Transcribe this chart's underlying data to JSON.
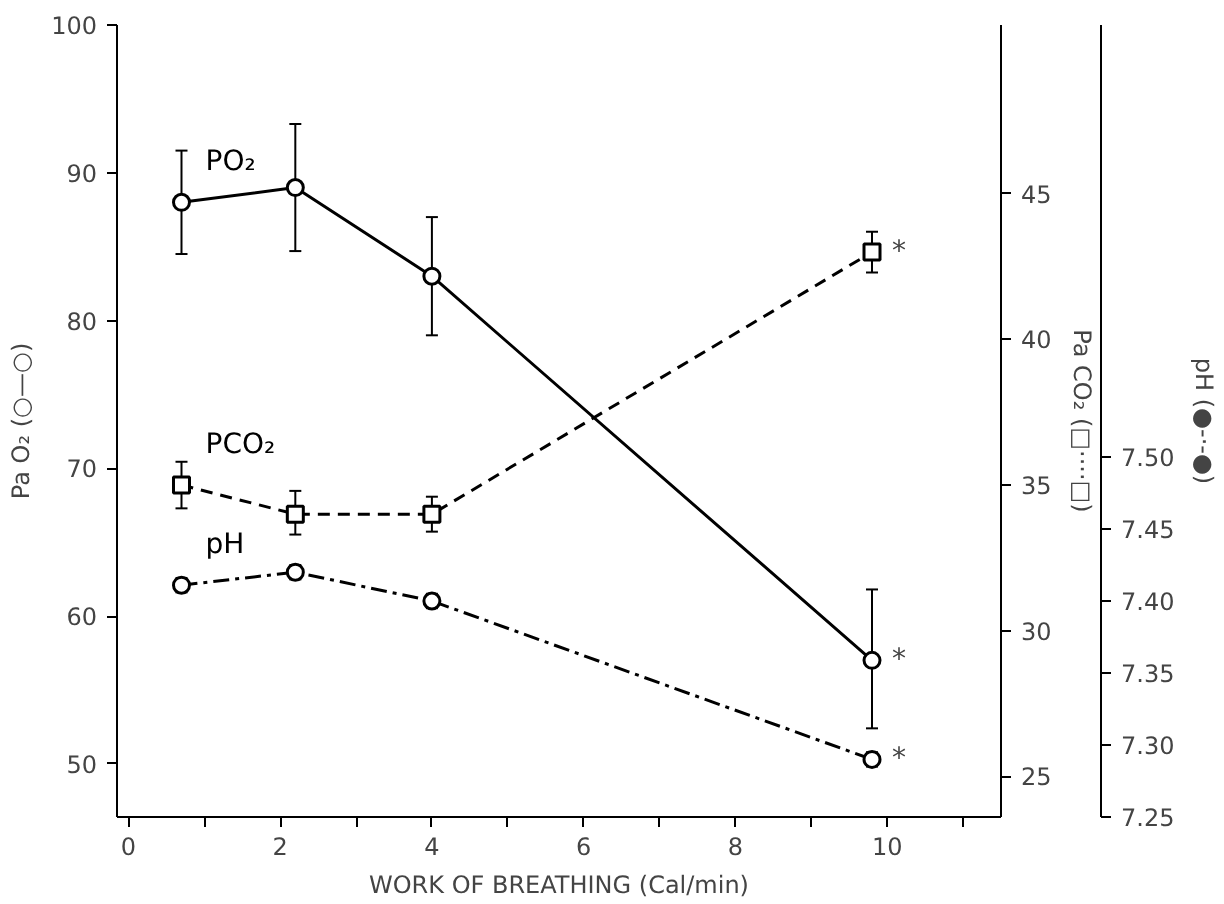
{
  "chart_data": {
    "type": "line",
    "xlabel": "WORK OF BREATHING (Cal/min)",
    "ylabel": "Pa O₂ (○—○)",
    "y2label": "Pa CO₂ (□····□)",
    "y3label": "pH (●-·-●)",
    "x": [
      0.7,
      2.2,
      4.0,
      9.8
    ],
    "xlim": [
      -0.15,
      11.5
    ],
    "xticks": [
      0,
      {
        "value": 1,
        "label": null
      },
      2,
      {
        "value": 3,
        "label": null
      },
      4,
      {
        "value": 5,
        "label": null
      },
      6,
      {
        "value": 7,
        "label": null
      },
      8,
      {
        "value": 9,
        "label": null
      },
      10,
      {
        "value": 11,
        "label": null
      }
    ],
    "ylim": [
      46.4,
      100
    ],
    "yticks": [
      50,
      60,
      70,
      80,
      90,
      100
    ],
    "y2lim": [
      23.6,
      50.8
    ],
    "y2ticks": [
      25,
      30,
      35,
      40,
      45
    ],
    "y3lim": [
      7.25,
      7.8
    ],
    "y3ticks": [
      {
        "value": 7.25,
        "label": "7.25"
      },
      {
        "value": 7.3,
        "label": "7.30"
      },
      {
        "value": 7.35,
        "label": "7.35"
      },
      {
        "value": 7.4,
        "label": "7.40"
      },
      {
        "value": 7.45,
        "label": "7.45"
      },
      {
        "value": 7.5,
        "label": "7.50"
      }
    ],
    "grid": false,
    "series": [
      {
        "name": "PO₂",
        "color": "#000000",
        "values": [
          88,
          89,
          83,
          57
        ],
        "errors": [
          [
            84.5,
            91.5
          ],
          [
            84.7,
            93.3
          ],
          [
            79,
            87
          ],
          [
            52.4,
            61.8
          ]
        ],
        "marker": "circle",
        "line_style": "solid"
      },
      {
        "name": "PCO₂",
        "color": "#000000",
        "axis": "y2",
        "values": [
          35.0,
          34.0,
          34.0,
          43.0
        ],
        "errors": [
          [
            34.2,
            35.8
          ],
          [
            33.3,
            34.8
          ],
          [
            33.4,
            34.6
          ],
          [
            42.3,
            43.7
          ]
        ],
        "marker": "square",
        "line_style": "dashed"
      },
      {
        "name": "pH",
        "color": "#000000",
        "axis": "y3",
        "values": [
          7.411,
          7.42,
          7.4,
          7.29
        ],
        "errors": [
          0.005,
          0.005,
          0.005,
          0.005
        ],
        "marker": "circle",
        "line_style": "dashdot"
      }
    ],
    "annotations": [
      "*",
      "*",
      "*"
    ]
  }
}
